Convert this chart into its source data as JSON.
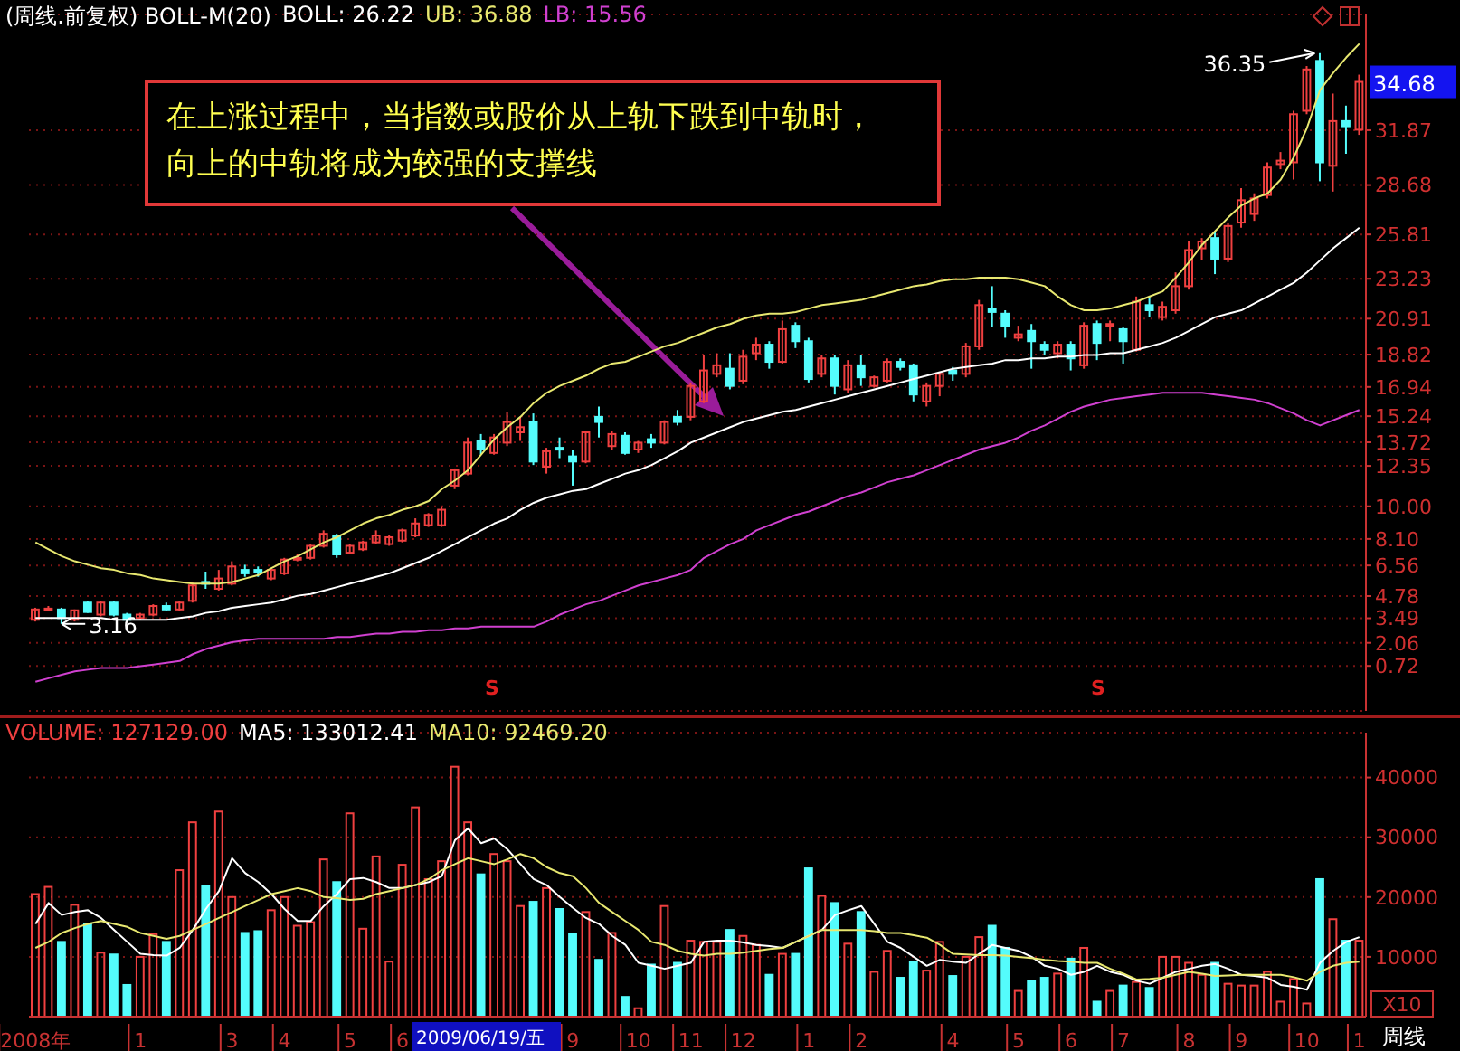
{
  "chart_data": [
    {
      "type": "candlestick",
      "title": "(周线.前复权) BOLL-M(20)",
      "ohlc": [
        [
          3.4,
          4.1,
          3.3,
          4.0
        ],
        [
          4.0,
          4.2,
          3.9,
          4.05
        ],
        [
          4.0,
          4.1,
          3.16,
          3.5
        ],
        [
          3.4,
          4.0,
          3.3,
          3.95
        ],
        [
          4.4,
          4.5,
          3.8,
          3.85
        ],
        [
          3.7,
          4.5,
          3.6,
          4.4
        ],
        [
          4.4,
          4.5,
          3.6,
          3.7
        ],
        [
          3.7,
          3.8,
          3.3,
          3.4
        ],
        [
          3.5,
          3.8,
          3.4,
          3.7
        ],
        [
          3.7,
          4.3,
          3.6,
          4.2
        ],
        [
          4.2,
          4.4,
          3.9,
          4.0
        ],
        [
          4.0,
          4.5,
          3.9,
          4.4
        ],
        [
          4.5,
          5.6,
          4.4,
          5.4
        ],
        [
          5.6,
          6.2,
          5.2,
          5.5
        ],
        [
          5.2,
          6.3,
          5.1,
          5.8
        ],
        [
          5.5,
          6.8,
          5.4,
          6.5
        ],
        [
          6.3,
          6.6,
          5.9,
          6.1
        ],
        [
          6.3,
          6.5,
          5.9,
          6.2
        ],
        [
          5.8,
          6.4,
          5.7,
          6.3
        ],
        [
          6.1,
          7.0,
          6.0,
          6.9
        ],
        [
          6.9,
          7.2,
          6.8,
          7.0
        ],
        [
          7.0,
          7.8,
          6.9,
          7.7
        ],
        [
          7.7,
          8.6,
          7.6,
          8.4
        ],
        [
          8.3,
          8.4,
          7.0,
          7.2
        ],
        [
          7.3,
          7.8,
          7.2,
          7.7
        ],
        [
          7.5,
          8.0,
          7.4,
          7.9
        ],
        [
          7.9,
          8.6,
          7.8,
          8.3
        ],
        [
          7.8,
          8.3,
          7.7,
          8.2
        ],
        [
          8.0,
          8.7,
          7.9,
          8.6
        ],
        [
          8.3,
          9.3,
          8.2,
          9.0
        ],
        [
          8.9,
          9.6,
          8.8,
          9.5
        ],
        [
          8.9,
          10.0,
          8.8,
          9.8
        ],
        [
          11.2,
          12.2,
          11.0,
          12.1
        ],
        [
          11.9,
          14.0,
          11.8,
          13.7
        ],
        [
          13.8,
          14.2,
          13.0,
          13.3
        ],
        [
          13.1,
          14.2,
          13.0,
          14.0
        ],
        [
          13.7,
          15.5,
          13.5,
          14.9
        ],
        [
          14.3,
          15.2,
          13.8,
          14.6
        ],
        [
          14.9,
          15.4,
          12.4,
          12.6
        ],
        [
          12.3,
          13.4,
          11.9,
          13.2
        ],
        [
          13.4,
          14.0,
          12.8,
          13.3
        ],
        [
          12.9,
          13.3,
          11.2,
          12.6
        ],
        [
          12.6,
          14.4,
          12.5,
          14.3
        ],
        [
          15.2,
          15.8,
          14.0,
          14.9
        ],
        [
          13.5,
          14.4,
          13.3,
          14.2
        ],
        [
          14.1,
          14.3,
          13.0,
          13.1
        ],
        [
          13.3,
          13.8,
          13.1,
          13.7
        ],
        [
          13.9,
          14.2,
          13.4,
          13.7
        ],
        [
          13.7,
          15.0,
          13.6,
          14.9
        ],
        [
          15.2,
          15.6,
          14.7,
          14.9
        ],
        [
          15.2,
          17.2,
          15.0,
          17.0
        ],
        [
          16.1,
          18.8,
          16.0,
          17.9
        ],
        [
          17.7,
          18.9,
          17.5,
          18.2
        ],
        [
          18.0,
          18.9,
          16.8,
          17.0
        ],
        [
          17.3,
          19.1,
          17.1,
          18.7
        ],
        [
          18.9,
          19.8,
          18.5,
          19.4
        ],
        [
          19.4,
          19.6,
          18.0,
          18.4
        ],
        [
          18.4,
          20.8,
          18.3,
          20.3
        ],
        [
          20.5,
          20.7,
          19.2,
          19.6
        ],
        [
          19.6,
          19.8,
          17.2,
          17.4
        ],
        [
          17.7,
          18.8,
          17.5,
          18.6
        ],
        [
          18.6,
          18.8,
          16.5,
          17.0
        ],
        [
          16.8,
          18.5,
          16.6,
          18.2
        ],
        [
          18.2,
          18.8,
          17.0,
          17.5
        ],
        [
          17.0,
          17.6,
          16.9,
          17.5
        ],
        [
          17.3,
          18.6,
          17.2,
          18.4
        ],
        [
          18.4,
          18.6,
          17.9,
          18.1
        ],
        [
          18.2,
          18.3,
          16.1,
          16.5
        ],
        [
          16.1,
          17.2,
          15.8,
          17.0
        ],
        [
          17.0,
          17.8,
          16.4,
          17.7
        ],
        [
          17.9,
          18.1,
          17.3,
          17.7
        ],
        [
          17.7,
          19.5,
          17.5,
          19.3
        ],
        [
          19.3,
          22.0,
          19.1,
          21.7
        ],
        [
          21.5,
          22.8,
          20.4,
          21.3
        ],
        [
          21.2,
          21.4,
          19.8,
          20.5
        ],
        [
          19.8,
          20.5,
          19.6,
          20.0
        ],
        [
          20.2,
          20.6,
          18.0,
          19.6
        ],
        [
          19.4,
          19.6,
          18.8,
          19.1
        ],
        [
          18.9,
          19.6,
          18.6,
          19.4
        ],
        [
          19.4,
          19.6,
          17.9,
          18.6
        ],
        [
          18.2,
          20.7,
          18.0,
          20.5
        ],
        [
          20.6,
          20.8,
          18.5,
          19.5
        ],
        [
          20.5,
          20.8,
          19.6,
          20.6
        ],
        [
          20.3,
          20.4,
          18.3,
          19.6
        ],
        [
          19.1,
          22.2,
          19.0,
          21.9
        ],
        [
          21.7,
          22.2,
          21.0,
          21.4
        ],
        [
          21.0,
          21.9,
          20.8,
          21.6
        ],
        [
          21.4,
          23.6,
          21.2,
          22.8
        ],
        [
          22.8,
          25.4,
          22.6,
          24.9
        ],
        [
          25.0,
          25.6,
          24.3,
          25.4
        ],
        [
          25.6,
          26.0,
          23.5,
          24.4
        ],
        [
          24.4,
          26.5,
          24.2,
          26.3
        ],
        [
          26.5,
          28.5,
          26.2,
          27.8
        ],
        [
          27.0,
          28.2,
          26.6,
          27.9
        ],
        [
          28.1,
          30.0,
          27.9,
          29.7
        ],
        [
          29.9,
          30.6,
          29.6,
          30.1
        ],
        [
          30.0,
          33.0,
          29.0,
          32.8
        ],
        [
          33.0,
          35.6,
          32.8,
          35.4
        ],
        [
          35.9,
          36.35,
          28.9,
          30.0
        ],
        [
          29.8,
          34.0,
          28.3,
          32.4
        ],
        [
          32.4,
          33.3,
          30.5,
          32.1
        ],
        [
          31.9,
          35.1,
          31.6,
          34.68
        ]
      ],
      "colors": [
        "#f04040",
        "#f04040",
        "#54fcfc",
        "#f04040",
        "#54fcfc",
        "#f04040",
        "#54fcfc",
        "#54fcfc",
        "#f04040",
        "#f04040",
        "#54fcfc",
        "#f04040",
        "#f04040",
        "#54fcfc",
        "#f04040",
        "#f04040",
        "#54fcfc",
        "#54fcfc",
        "#f04040",
        "#f04040",
        "#f04040",
        "#f04040",
        "#f04040",
        "#54fcfc",
        "#f04040",
        "#f04040",
        "#f04040",
        "#f04040",
        "#f04040",
        "#f04040",
        "#f04040",
        "#f04040",
        "#f04040",
        "#f04040",
        "#54fcfc",
        "#f04040",
        "#f04040",
        "#f04040",
        "#54fcfc",
        "#f04040",
        "#54fcfc",
        "#54fcfc",
        "#f04040",
        "#54fcfc",
        "#f04040",
        "#54fcfc",
        "#f04040",
        "#54fcfc",
        "#f04040",
        "#54fcfc",
        "#f04040",
        "#f04040",
        "#f04040",
        "#54fcfc",
        "#f04040",
        "#f04040",
        "#54fcfc",
        "#f04040",
        "#54fcfc",
        "#54fcfc",
        "#f04040",
        "#54fcfc",
        "#f04040",
        "#54fcfc",
        "#f04040",
        "#f04040",
        "#54fcfc",
        "#54fcfc",
        "#f04040",
        "#f04040",
        "#54fcfc",
        "#f04040",
        "#f04040",
        "#54fcfc",
        "#54fcfc",
        "#f04040",
        "#54fcfc",
        "#54fcfc",
        "#f04040",
        "#54fcfc",
        "#f04040",
        "#54fcfc",
        "#f04040",
        "#54fcfc",
        "#f04040",
        "#54fcfc",
        "#f04040",
        "#f04040",
        "#f04040",
        "#f04040",
        "#54fcfc",
        "#f04040",
        "#f04040",
        "#f04040",
        "#f04040",
        "#f04040",
        "#f04040",
        "#f04040",
        "#54fcfc",
        "#f04040",
        "#54fcfc",
        "#f04040"
      ],
      "series": [
        {
          "type": "line",
          "name": "BOLL: 26.22",
          "color": "#ffffff",
          "values": [
            3.5,
            3.5,
            3.5,
            3.5,
            3.5,
            3.5,
            3.4,
            3.4,
            3.4,
            3.4,
            3.4,
            3.5,
            3.6,
            3.8,
            3.9,
            4.1,
            4.2,
            4.3,
            4.4,
            4.6,
            4.8,
            4.9,
            5.1,
            5.3,
            5.5,
            5.7,
            5.9,
            6.1,
            6.4,
            6.7,
            7.0,
            7.4,
            7.8,
            8.2,
            8.6,
            9.0,
            9.3,
            9.8,
            10.2,
            10.5,
            10.7,
            10.9,
            11.0,
            11.3,
            11.6,
            11.9,
            12.1,
            12.4,
            12.8,
            13.2,
            13.7,
            14.0,
            14.3,
            14.6,
            14.9,
            15.1,
            15.3,
            15.5,
            15.6,
            15.8,
            16.0,
            16.2,
            16.4,
            16.6,
            16.8,
            17.0,
            17.2,
            17.4,
            17.6,
            17.8,
            18.0,
            18.1,
            18.2,
            18.3,
            18.5,
            18.5,
            18.6,
            18.6,
            18.7,
            18.7,
            18.8,
            18.8,
            18.9,
            18.9,
            19.1,
            19.3,
            19.5,
            19.8,
            20.2,
            20.6,
            21.0,
            21.2,
            21.4,
            21.8,
            22.2,
            22.6,
            23.0,
            23.6,
            24.3,
            25.0,
            25.6,
            26.2
          ]
        },
        {
          "type": "line",
          "name": "UB: 36.88",
          "color": "#e8e870",
          "values": [
            7.9,
            7.5,
            7.1,
            6.8,
            6.6,
            6.4,
            6.3,
            6.1,
            6.0,
            5.8,
            5.7,
            5.6,
            5.5,
            5.5,
            5.5,
            5.6,
            5.8,
            6.0,
            6.4,
            6.8,
            7.1,
            7.5,
            7.9,
            8.2,
            8.6,
            9.0,
            9.3,
            9.5,
            9.8,
            10.0,
            10.3,
            11.0,
            11.5,
            12.1,
            13.0,
            13.9,
            14.6,
            15.2,
            16.0,
            16.6,
            17.0,
            17.3,
            17.6,
            18.0,
            18.3,
            18.4,
            18.7,
            19.0,
            19.3,
            19.5,
            19.8,
            20.1,
            20.4,
            20.6,
            20.9,
            21.1,
            21.2,
            21.2,
            21.3,
            21.5,
            21.7,
            21.8,
            21.9,
            22.0,
            22.2,
            22.4,
            22.6,
            22.8,
            22.9,
            23.1,
            23.2,
            23.2,
            23.3,
            23.3,
            23.3,
            23.2,
            23.0,
            22.8,
            22.2,
            21.7,
            21.4,
            21.4,
            21.5,
            21.7,
            21.9,
            22.2,
            22.5,
            23.3,
            24.2,
            25.2,
            26.0,
            26.8,
            27.5,
            27.9,
            28.2,
            29.0,
            30.3,
            32.0,
            34.2,
            35.2,
            36.1,
            36.9
          ]
        },
        {
          "type": "line",
          "name": "LB: 15.56",
          "color": "#d040d0",
          "values": [
            -0.2,
            0.0,
            0.2,
            0.4,
            0.5,
            0.6,
            0.6,
            0.6,
            0.7,
            0.8,
            0.9,
            1.0,
            1.4,
            1.7,
            1.9,
            2.1,
            2.2,
            2.3,
            2.3,
            2.3,
            2.3,
            2.3,
            2.3,
            2.4,
            2.4,
            2.5,
            2.6,
            2.6,
            2.7,
            2.7,
            2.8,
            2.8,
            2.9,
            2.9,
            3.0,
            3.0,
            3.0,
            3.0,
            3.0,
            3.3,
            3.7,
            4.0,
            4.3,
            4.5,
            4.8,
            5.1,
            5.4,
            5.6,
            5.8,
            6.0,
            6.3,
            7.0,
            7.4,
            7.8,
            8.1,
            8.6,
            8.9,
            9.2,
            9.5,
            9.7,
            10.0,
            10.3,
            10.6,
            10.8,
            11.1,
            11.4,
            11.6,
            11.8,
            12.1,
            12.4,
            12.7,
            13.0,
            13.3,
            13.5,
            13.7,
            14.0,
            14.4,
            14.7,
            15.1,
            15.5,
            15.8,
            16.0,
            16.2,
            16.3,
            16.4,
            16.5,
            16.6,
            16.6,
            16.6,
            16.6,
            16.5,
            16.4,
            16.3,
            16.2,
            16.0,
            15.7,
            15.4,
            15.0,
            14.7,
            15.0,
            15.3,
            15.6
          ]
        }
      ],
      "ylim": [
        -1.9,
        38.6
      ],
      "yticks": [
        0.72,
        2.06,
        3.49,
        4.78,
        6.56,
        {
          "value": 8.1,
          "label": "8.10"
        },
        {
          "value": 10,
          "label": "10.00"
        },
        12.35,
        13.72,
        15.24,
        16.94,
        18.82,
        20.91,
        23.23,
        25.81,
        28.68,
        31.87
      ],
      "grid": "y",
      "legend": "top left",
      "tick_labels": "y",
      "annotations": [
        "在上涨过程中，当指数或股价从上轨下跌到中轨时，向上的中轨将成为较强的支撑线",
        "36.35",
        "3.16",
        "34.68",
        "S",
        "S"
      ]
    },
    {
      "type": "bar",
      "categories": [
        "2008年",
        null,
        null,
        null,
        null,
        null,
        null,
        null,
        "1",
        null,
        null,
        null,
        null,
        null,
        null,
        "3",
        null,
        null,
        null,
        "4",
        null,
        null,
        null,
        null,
        "5",
        null,
        null,
        null,
        "6",
        null,
        null,
        null,
        null,
        null,
        null,
        null,
        null,
        null,
        null,
        null,
        null,
        "9",
        null,
        null,
        null,
        null,
        "10",
        null,
        null,
        null,
        "11",
        null,
        null,
        null,
        "12",
        null,
        null,
        null,
        null,
        "1",
        null,
        null,
        null,
        "2",
        null,
        null,
        null,
        null,
        null,
        null,
        "4",
        null,
        null,
        null,
        null,
        "5",
        null,
        null,
        null,
        "6",
        null,
        null,
        null,
        "7",
        null,
        null,
        null,
        null,
        "8",
        null,
        null,
        null,
        "9",
        null,
        null,
        null,
        null,
        "10",
        null,
        null,
        null,
        "1"
      ],
      "series": [
        {
          "type": "bar",
          "name": "VOLUME: 127129.00",
          "colors": [
            "#f04040",
            "#f04040",
            "#54fcfc",
            "#f04040",
            "#54fcfc",
            "#f04040",
            "#54fcfc",
            "#54fcfc",
            "#f04040",
            "#f04040",
            "#54fcfc",
            "#f04040",
            "#f04040",
            "#54fcfc",
            "#f04040",
            "#f04040",
            "#54fcfc",
            "#54fcfc",
            "#f04040",
            "#f04040",
            "#f04040",
            "#f04040",
            "#f04040",
            "#54fcfc",
            "#f04040",
            "#f04040",
            "#f04040",
            "#f04040",
            "#f04040",
            "#f04040",
            "#f04040",
            "#f04040",
            "#f04040",
            "#f04040",
            "#54fcfc",
            "#f04040",
            "#f04040",
            "#f04040",
            "#54fcfc",
            "#f04040",
            "#54fcfc",
            "#54fcfc",
            "#f04040",
            "#54fcfc",
            "#f04040",
            "#54fcfc",
            "#f04040",
            "#54fcfc",
            "#f04040",
            "#54fcfc",
            "#f04040",
            "#f04040",
            "#f04040",
            "#54fcfc",
            "#f04040",
            "#f04040",
            "#54fcfc",
            "#f04040",
            "#54fcfc",
            "#54fcfc",
            "#f04040",
            "#54fcfc",
            "#f04040",
            "#54fcfc",
            "#f04040",
            "#f04040",
            "#54fcfc",
            "#54fcfc",
            "#f04040",
            "#f04040",
            "#54fcfc",
            "#f04040",
            "#f04040",
            "#54fcfc",
            "#54fcfc",
            "#f04040",
            "#54fcfc",
            "#54fcfc",
            "#f04040",
            "#54fcfc",
            "#f04040",
            "#54fcfc",
            "#f04040",
            "#54fcfc",
            "#f04040",
            "#54fcfc",
            "#f04040",
            "#f04040",
            "#f04040",
            "#f04040",
            "#54fcfc",
            "#f04040",
            "#f04040",
            "#f04040",
            "#f04040",
            "#f04040",
            "#f04040",
            "#f04040",
            "#54fcfc",
            "#f04040",
            "#54fcfc",
            "#f04040"
          ],
          "values": [
            20500,
            21700,
            12500,
            18700,
            15500,
            10700,
            10400,
            5300,
            10000,
            13800,
            12500,
            24500,
            32500,
            21800,
            34300,
            20000,
            14000,
            14300,
            17800,
            20000,
            15200,
            15800,
            26300,
            22500,
            34000,
            14700,
            26800,
            9200,
            25400,
            35000,
            23000,
            26000,
            41800,
            32500,
            23800,
            27200,
            26000,
            18500,
            19200,
            21500,
            18000,
            13800,
            17500,
            9500,
            14000,
            3300,
            1400,
            8700,
            18500,
            9000,
            12700,
            12500,
            12500,
            14500,
            13500,
            12000,
            7000,
            10500,
            10500,
            24800,
            20200,
            19000,
            12200,
            17500,
            7500,
            11000,
            6500,
            9200,
            7700,
            12500,
            6800,
            10000,
            13300,
            15200,
            11500,
            4300,
            6000,
            6500,
            7200,
            9700,
            11500,
            2500,
            4300,
            5200,
            5800,
            4800,
            10000,
            10000,
            9000,
            7000,
            9000,
            5500,
            5200,
            5200,
            7500,
            2500,
            6300,
            2200,
            23000,
            16300,
            12700,
            12700
          ]
        },
        {
          "type": "line",
          "name": "MA5: 133012.41",
          "color": "#ffffff",
          "values": [
            15500,
            19000,
            17000,
            17500,
            17800,
            16500,
            14500,
            12500,
            10500,
            10300,
            10200,
            11500,
            14500,
            18000,
            21000,
            26500,
            24000,
            22500,
            20500,
            18000,
            16000,
            16000,
            18500,
            20500,
            23000,
            23200,
            22500,
            21500,
            21500,
            22000,
            22500,
            23500,
            29500,
            31500,
            29000,
            29800,
            28000,
            25500,
            23000,
            22000,
            20000,
            18200,
            16500,
            15500,
            13500,
            12000,
            9000,
            8500,
            8000,
            8500,
            9000,
            12500,
            12700,
            12700,
            12400,
            12000,
            11800,
            11500,
            12500,
            13500,
            14500,
            17000,
            17800,
            18500,
            15500,
            12500,
            11500,
            10000,
            8500,
            9500,
            9200,
            9000,
            10500,
            12000,
            11500,
            11000,
            10000,
            8500,
            8000,
            7000,
            7500,
            8500,
            7500,
            7000,
            6000,
            5500,
            6500,
            7500,
            8000,
            8500,
            8800,
            8000,
            7000,
            6800,
            6500,
            5300,
            5000,
            4500,
            9000,
            11000,
            12500,
            13300
          ]
        },
        {
          "type": "line",
          "name": "MA10: 92469.20",
          "color": "#e8e870",
          "values": [
            11500,
            12500,
            14000,
            14800,
            15500,
            16000,
            15500,
            15000,
            14000,
            13500,
            13000,
            13500,
            14500,
            15500,
            16500,
            17500,
            18500,
            19500,
            20500,
            21000,
            21500,
            21000,
            20000,
            19800,
            19500,
            19700,
            20500,
            21000,
            21500,
            22000,
            23000,
            24500,
            25500,
            26500,
            26000,
            25500,
            26300,
            27200,
            26500,
            25000,
            24000,
            23500,
            21500,
            19000,
            17500,
            16000,
            14500,
            12500,
            12000,
            11000,
            10500,
            10200,
            10500,
            10500,
            10700,
            11000,
            11300,
            11500,
            12500,
            13500,
            14500,
            14500,
            14500,
            14500,
            14300,
            14000,
            14000,
            13600,
            13200,
            12000,
            10500,
            10400,
            10300,
            10300,
            10200,
            10000,
            9800,
            9500,
            9300,
            9200,
            9000,
            9000,
            8000,
            7200,
            6200,
            6300,
            6500,
            7000,
            7500,
            7200,
            6800,
            6900,
            7000,
            7000,
            7000,
            7000,
            6600,
            6000,
            7500,
            8500,
            9000,
            9200
          ]
        }
      ],
      "ylim": [
        0,
        47500
      ],
      "yticks": [
        10000,
        20000,
        30000,
        40000
      ],
      "grid": "y",
      "legend": "top left",
      "annotations": [
        "2009/06/19/五",
        "X10",
        "周线"
      ]
    }
  ]
}
